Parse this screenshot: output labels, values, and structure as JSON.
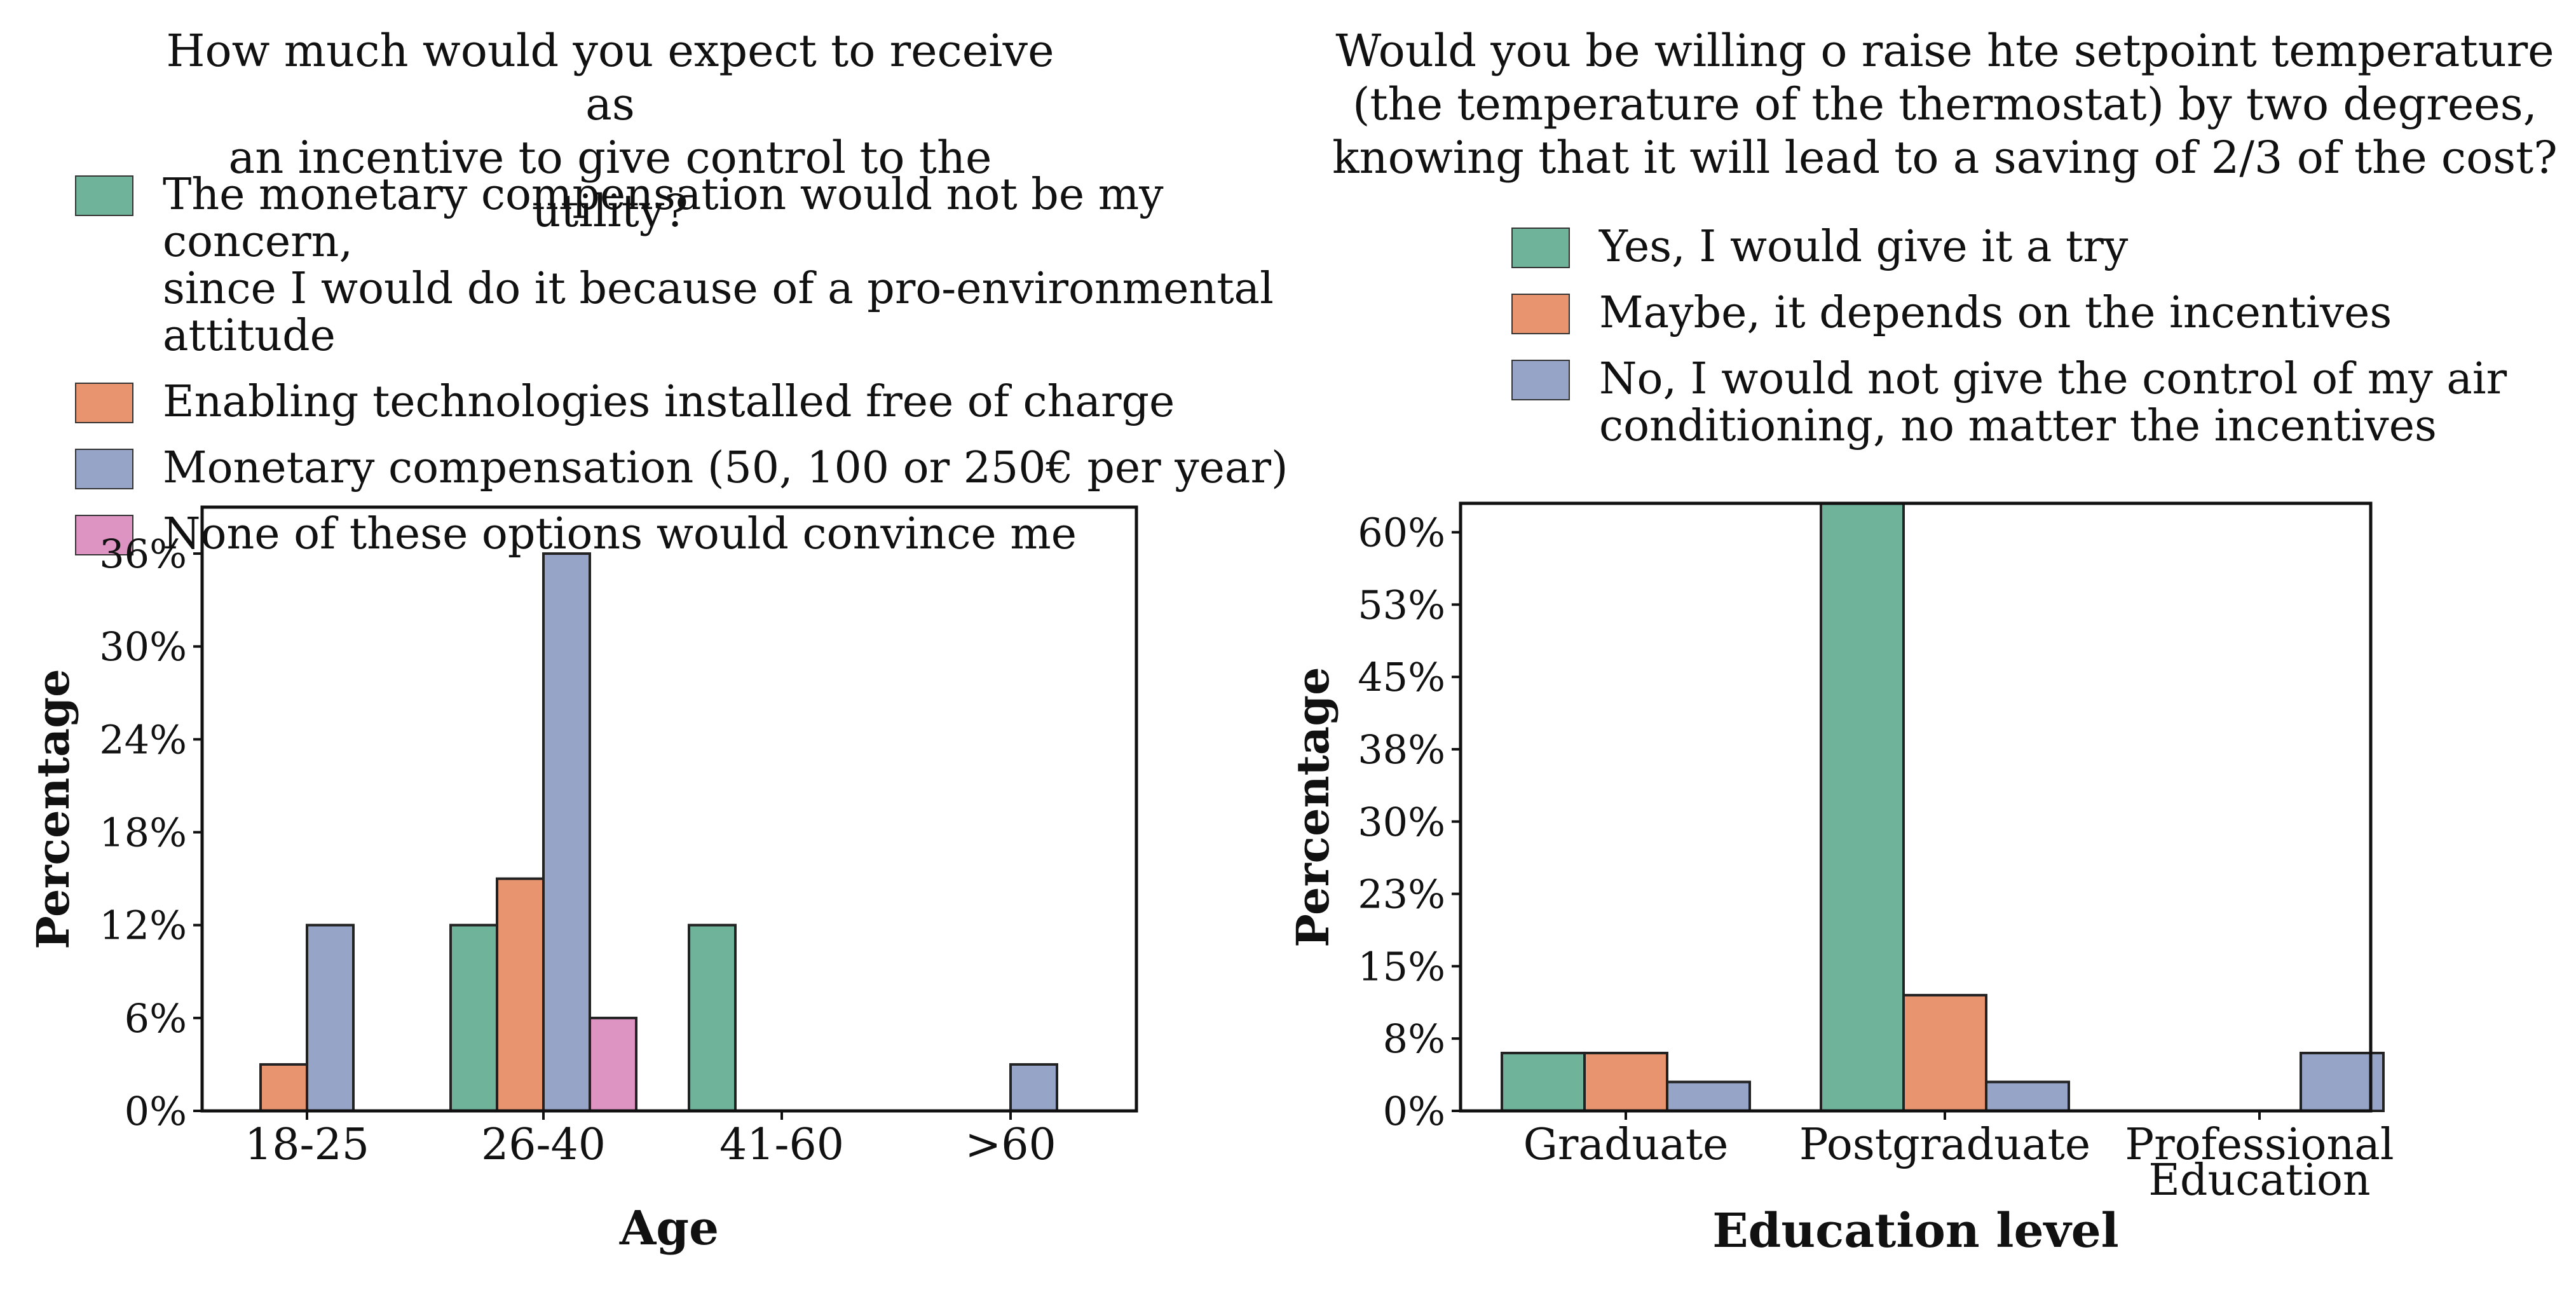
{
  "colors": {
    "green": "#6fb39b",
    "orange": "#e8946f",
    "blue": "#96a4c8",
    "pink": "#dd94c2"
  },
  "left": {
    "title_lines": [
      "How much would you expect to receive as",
      "an incentive to give control to the utility?"
    ],
    "legend": [
      {
        "color": "#6fb39b",
        "label": "The monetary compensation would not be my concern,\nsince I would do it because of a pro-environmental attitude"
      },
      {
        "color": "#e8946f",
        "label": "Enabling technologies installed free of charge"
      },
      {
        "color": "#96a4c8",
        "label": "Monetary compensation (50, 100 or 250€ per year)"
      },
      {
        "color": "#dd94c2",
        "label": "None of these options would convince me"
      }
    ]
  },
  "right": {
    "title_lines": [
      "Would you be willing o raise hte setpoint temperature",
      "(the temperature of the thermostat) by two degrees,",
      "knowing that it will lead to a saving of 2/3 of the cost?"
    ],
    "legend": [
      {
        "color": "#6fb39b",
        "label": "Yes, I would give it a try"
      },
      {
        "color": "#e8946f",
        "label": "Maybe, it depends on the incentives"
      },
      {
        "color": "#96a4c8",
        "label": "No, I would not give the control of my air\nconditioning, no matter the incentives"
      }
    ]
  },
  "chart_data": [
    {
      "type": "bar",
      "title": "How much would you expect to receive as an incentive to give control to the utility?",
      "xlabel": "Age",
      "ylabel": "Percentage",
      "categories": [
        "18-25",
        "26-40",
        "41-60",
        ">60"
      ],
      "yticks": [
        0,
        6,
        12,
        18,
        24,
        30,
        36
      ],
      "ytick_labels": [
        "0%",
        "6%",
        "12%",
        "18%",
        "24%",
        "30%",
        "36%"
      ],
      "ylim": [
        0,
        39
      ],
      "series": [
        {
          "name": "The monetary compensation would not be my concern, since I would do it because of a pro-environmental attitude",
          "color": "#6fb39b",
          "values": [
            0,
            12,
            12,
            0
          ]
        },
        {
          "name": "Enabling technologies installed free of charge",
          "color": "#e8946f",
          "values": [
            3,
            15,
            0,
            0
          ]
        },
        {
          "name": "Monetary compensation (50, 100 or 250€ per year)",
          "color": "#96a4c8",
          "values": [
            12,
            36,
            0,
            3
          ]
        },
        {
          "name": "None of these options would convince me",
          "color": "#dd94c2",
          "values": [
            0,
            6,
            0,
            0
          ]
        }
      ]
    },
    {
      "type": "bar",
      "title": "Would you be willing o raise hte setpoint temperature (the temperature of the thermostat) by two degrees, knowing that it will lead to a saving of 2/3 of the cost?",
      "xlabel": "Education level",
      "ylabel": "Percentage",
      "categories": [
        "Graduate",
        "Postgraduate",
        "Professional\nEducation"
      ],
      "yticks": [
        0,
        7.5,
        15,
        22.5,
        30,
        37.5,
        45,
        52.5,
        60
      ],
      "ytick_labels": [
        "0%",
        "8%",
        "15%",
        "23%",
        "30%",
        "38%",
        "45%",
        "53%",
        "60%"
      ],
      "ylim": [
        0,
        63
      ],
      "series": [
        {
          "name": "Yes, I would give it a try",
          "color": "#6fb39b",
          "values": [
            6,
            63,
            0
          ]
        },
        {
          "name": "Maybe, it depends on the incentives",
          "color": "#e8946f",
          "values": [
            6,
            12,
            0
          ]
        },
        {
          "name": "No, I would not give the control of my air conditioning, no matter the incentives",
          "color": "#96a4c8",
          "values": [
            3,
            3,
            6
          ]
        }
      ]
    }
  ]
}
